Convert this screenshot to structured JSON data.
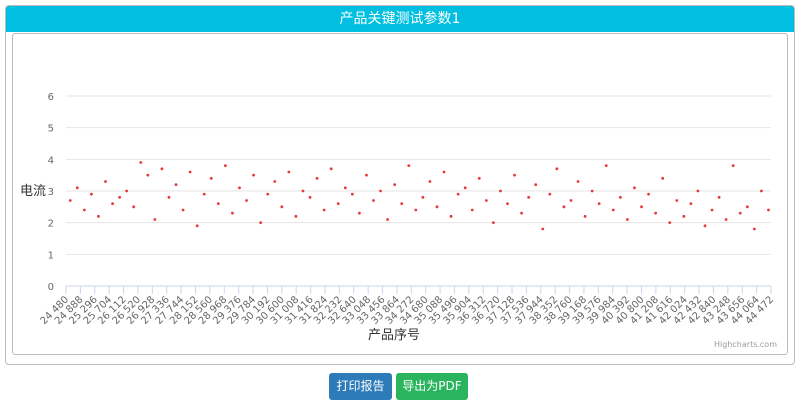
{
  "chart_data": {
    "type": "scatter",
    "title": "产品关键测试参数1",
    "x_label": "产品序号",
    "y_label": "电流",
    "credits": "Highcharts.com",
    "color": "#e8383d",
    "grid": true,
    "xlim": [
      24480,
      44472
    ],
    "ylim": [
      0,
      6
    ],
    "yticks": [
      0,
      1,
      2,
      3,
      4,
      5,
      6
    ],
    "xticks": [
      {
        "value": 24480,
        "label": "24 480"
      },
      {
        "value": 24888,
        "label": "24 888"
      },
      {
        "value": 25296,
        "label": "25 296"
      },
      {
        "value": 25704,
        "label": "25 704"
      },
      {
        "value": 26112,
        "label": "26 112"
      },
      {
        "value": 26520,
        "label": "26 520"
      },
      {
        "value": 26928,
        "label": "26 928"
      },
      {
        "value": 27336,
        "label": "27 336"
      },
      {
        "value": 27744,
        "label": "27 744"
      },
      {
        "value": 28152,
        "label": "28 152"
      },
      {
        "value": 28560,
        "label": "28 560"
      },
      {
        "value": 28968,
        "label": "28 968"
      },
      {
        "value": 29376,
        "label": "29 376"
      },
      {
        "value": 29784,
        "label": "29 784"
      },
      {
        "value": 30192,
        "label": "30 192"
      },
      {
        "value": 30600,
        "label": "30 600"
      },
      {
        "value": 31008,
        "label": "31 008"
      },
      {
        "value": 31416,
        "label": "31 416"
      },
      {
        "value": 31824,
        "label": "31 824"
      },
      {
        "value": 32232,
        "label": "32 232"
      },
      {
        "value": 32640,
        "label": "32 640"
      },
      {
        "value": 33048,
        "label": "33 048"
      },
      {
        "value": 33456,
        "label": "33 456"
      },
      {
        "value": 33864,
        "label": "33 864"
      },
      {
        "value": 34272,
        "label": "34 272"
      },
      {
        "value": 34680,
        "label": "34 680"
      },
      {
        "value": 35088,
        "label": "35 088"
      },
      {
        "value": 35496,
        "label": "35 496"
      },
      {
        "value": 35904,
        "label": "35 904"
      },
      {
        "value": 36312,
        "label": "36 312"
      },
      {
        "value": 36720,
        "label": "36 720"
      },
      {
        "value": 37128,
        "label": "37 128"
      },
      {
        "value": 37536,
        "label": "37 536"
      },
      {
        "value": 37944,
        "label": "37 944"
      },
      {
        "value": 38352,
        "label": "38 352"
      },
      {
        "value": 38760,
        "label": "38 760"
      },
      {
        "value": 39168,
        "label": "39 168"
      },
      {
        "value": 39576,
        "label": "39 576"
      },
      {
        "value": 39984,
        "label": "39 984"
      },
      {
        "value": 40392,
        "label": "40 392"
      },
      {
        "value": 40800,
        "label": "40 800"
      },
      {
        "value": 41208,
        "label": "41 208"
      },
      {
        "value": 41616,
        "label": "41 616"
      },
      {
        "value": 42024,
        "label": "42 024"
      },
      {
        "value": 42432,
        "label": "42 432"
      },
      {
        "value": 42840,
        "label": "42 840"
      },
      {
        "value": 43248,
        "label": "43 248"
      },
      {
        "value": 43656,
        "label": "43 656"
      },
      {
        "value": 44064,
        "label": "44 064"
      },
      {
        "value": 44472,
        "label": "44 472"
      }
    ],
    "x": [
      24600,
      24800,
      25000,
      25200,
      25400,
      25600,
      25800,
      26000,
      26200,
      26400,
      26600,
      26800,
      27000,
      27200,
      27400,
      27600,
      27800,
      28000,
      28200,
      28400,
      28600,
      28800,
      29000,
      29200,
      29400,
      29600,
      29800,
      30000,
      30200,
      30400,
      30600,
      30800,
      31000,
      31200,
      31400,
      31600,
      31800,
      32000,
      32200,
      32400,
      32600,
      32800,
      33000,
      33200,
      33400,
      33600,
      33800,
      34000,
      34200,
      34400,
      34600,
      34800,
      35000,
      35200,
      35400,
      35600,
      35800,
      36000,
      36200,
      36400,
      36600,
      36800,
      37000,
      37200,
      37400,
      37600,
      37800,
      38000,
      38200,
      38400,
      38600,
      38800,
      39000,
      39200,
      39400,
      39600,
      39800,
      40000,
      40200,
      40400,
      40600,
      40800,
      41000,
      41200,
      41400,
      41600,
      41800,
      42000,
      42200,
      42400,
      42600,
      42800,
      43000,
      43200,
      43400,
      43600,
      43800,
      44000,
      44200,
      44400
    ],
    "values": [
      2.7,
      3.1,
      2.4,
      2.9,
      2.2,
      3.3,
      2.6,
      2.8,
      3.0,
      2.5,
      3.9,
      3.5,
      2.1,
      3.7,
      2.8,
      3.2,
      2.4,
      3.6,
      1.9,
      2.9,
      3.4,
      2.6,
      3.8,
      2.3,
      3.1,
      2.7,
      3.5,
      2.0,
      2.9,
      3.3,
      2.5,
      3.6,
      2.2,
      3.0,
      2.8,
      3.4,
      2.4,
      3.7,
      2.6,
      3.1,
      2.9,
      2.3,
      3.5,
      2.7,
      3.0,
      2.1,
      3.2,
      2.6,
      3.8,
      2.4,
      2.8,
      3.3,
      2.5,
      3.6,
      2.2,
      2.9,
      3.1,
      2.4,
      3.4,
      2.7,
      2.0,
      3.0,
      2.6,
      3.5,
      2.3,
      2.8,
      3.2,
      1.8,
      2.9,
      3.7,
      2.5,
      2.7,
      3.3,
      2.2,
      3.0,
      2.6,
      3.8,
      2.4,
      2.8,
      2.1,
      3.1,
      2.5,
      2.9,
      2.3,
      3.4,
      2.0,
      2.7,
      2.2,
      2.6,
      3.0,
      1.9,
      2.4,
      2.8,
      2.1,
      3.8,
      2.3,
      2.5,
      1.8,
      3.0,
      2.4
    ]
  },
  "buttons": [
    "打印报告",
    "导出为PDF"
  ]
}
